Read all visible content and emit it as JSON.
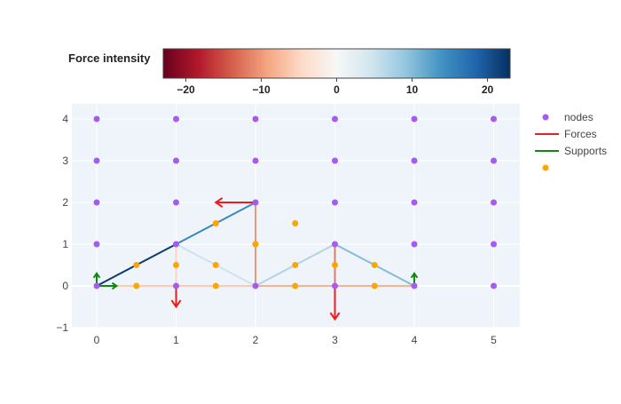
{
  "chart_data": {
    "type": "scatter",
    "xlim": [
      -0.3,
      5.3
    ],
    "ylim": [
      -1,
      4.4
    ],
    "x_ticks": [
      0,
      1,
      2,
      3,
      4,
      5
    ],
    "y_ticks": [
      -1,
      0,
      1,
      2,
      3,
      4
    ],
    "grid": true,
    "colorbar": {
      "title": "Force intensity",
      "range": [
        -23,
        23
      ],
      "ticks": [
        -20,
        -10,
        0,
        10,
        20
      ],
      "tick_labels": [
        "−20",
        "−10",
        "0",
        "10",
        "20"
      ],
      "colorscale": [
        "#67001f",
        "#b2182b",
        "#d6604d",
        "#f4a582",
        "#fddbc7",
        "#f7f7f7",
        "#d1e5f0",
        "#92c5de",
        "#4393c3",
        "#2166ac",
        "#053061"
      ]
    },
    "legend": {
      "position": "right",
      "entries": [
        {
          "name": "nodes",
          "symbol": "marker",
          "color": "#a55bf0"
        },
        {
          "name": "Forces",
          "symbol": "line",
          "color": "#ee1c1c"
        },
        {
          "name": "Supports",
          "symbol": "line",
          "color": "#118811"
        },
        {
          "name": "",
          "symbol": "marker",
          "color": "#ffa500"
        }
      ]
    },
    "nodes": {
      "color": "#a55bf0",
      "points": [
        [
          0,
          0
        ],
        [
          1,
          0
        ],
        [
          2,
          0
        ],
        [
          3,
          0
        ],
        [
          4,
          0
        ],
        [
          5,
          0
        ],
        [
          0,
          1
        ],
        [
          1,
          1
        ],
        [
          2,
          1
        ],
        [
          3,
          1
        ],
        [
          4,
          1
        ],
        [
          5,
          1
        ],
        [
          0,
          2
        ],
        [
          1,
          2
        ],
        [
          2,
          2
        ],
        [
          3,
          2
        ],
        [
          4,
          2
        ],
        [
          5,
          2
        ],
        [
          0,
          3
        ],
        [
          1,
          3
        ],
        [
          2,
          3
        ],
        [
          3,
          3
        ],
        [
          4,
          3
        ],
        [
          5,
          3
        ],
        [
          0,
          4
        ],
        [
          1,
          4
        ],
        [
          2,
          4
        ],
        [
          3,
          4
        ],
        [
          4,
          4
        ],
        [
          5,
          4
        ]
      ]
    },
    "members": [
      {
        "from": [
          0,
          0
        ],
        "to": [
          1,
          1
        ],
        "force": 22
      },
      {
        "from": [
          1,
          1
        ],
        "to": [
          2,
          2
        ],
        "force": 15
      },
      {
        "from": [
          0,
          0
        ],
        "to": [
          1,
          0
        ],
        "force": -6
      },
      {
        "from": [
          1,
          0
        ],
        "to": [
          2,
          0
        ],
        "force": -6
      },
      {
        "from": [
          2,
          0
        ],
        "to": [
          3,
          0
        ],
        "force": -8
      },
      {
        "from": [
          3,
          0
        ],
        "to": [
          4,
          0
        ],
        "force": -8
      },
      {
        "from": [
          1,
          1
        ],
        "to": [
          1,
          0
        ],
        "force": -5
      },
      {
        "from": [
          1,
          1
        ],
        "to": [
          2,
          0
        ],
        "force": 5
      },
      {
        "from": [
          2,
          2
        ],
        "to": [
          2,
          0
        ],
        "force": -10
      },
      {
        "from": [
          2,
          2
        ],
        "to": [
          3,
          1
        ],
        "force": 0.5
      },
      {
        "from": [
          2,
          0
        ],
        "to": [
          3,
          1
        ],
        "force": 7
      },
      {
        "from": [
          3,
          1
        ],
        "to": [
          3,
          0
        ],
        "force": -12
      },
      {
        "from": [
          3,
          1
        ],
        "to": [
          4,
          0
        ],
        "force": 10
      }
    ],
    "midpoints": {
      "color": "#ffa500",
      "points": [
        [
          0.5,
          0.5
        ],
        [
          1.5,
          1.5
        ],
        [
          0.5,
          0
        ],
        [
          1.5,
          0
        ],
        [
          2.5,
          0
        ],
        [
          3.5,
          0
        ],
        [
          1,
          0.5
        ],
        [
          1.5,
          0.5
        ],
        [
          2,
          1
        ],
        [
          2.5,
          1.5
        ],
        [
          2.5,
          0.5
        ],
        [
          3,
          0.5
        ],
        [
          3.5,
          0.5
        ]
      ]
    },
    "forces": {
      "color": "#ee1c1c",
      "items": [
        {
          "at": [
            2,
            2
          ],
          "vector": [
            -0.5,
            0
          ]
        },
        {
          "at": [
            1,
            0
          ],
          "vector": [
            0,
            -0.5
          ]
        },
        {
          "at": [
            3,
            0
          ],
          "vector": [
            0,
            -0.8
          ]
        }
      ]
    },
    "supports": {
      "color": "#118811",
      "items": [
        {
          "at": [
            0,
            0
          ],
          "vector": [
            0.25,
            0
          ]
        },
        {
          "at": [
            0,
            0
          ],
          "vector": [
            0,
            0.3
          ]
        },
        {
          "at": [
            4,
            0
          ],
          "vector": [
            0,
            0.3
          ]
        }
      ]
    }
  }
}
